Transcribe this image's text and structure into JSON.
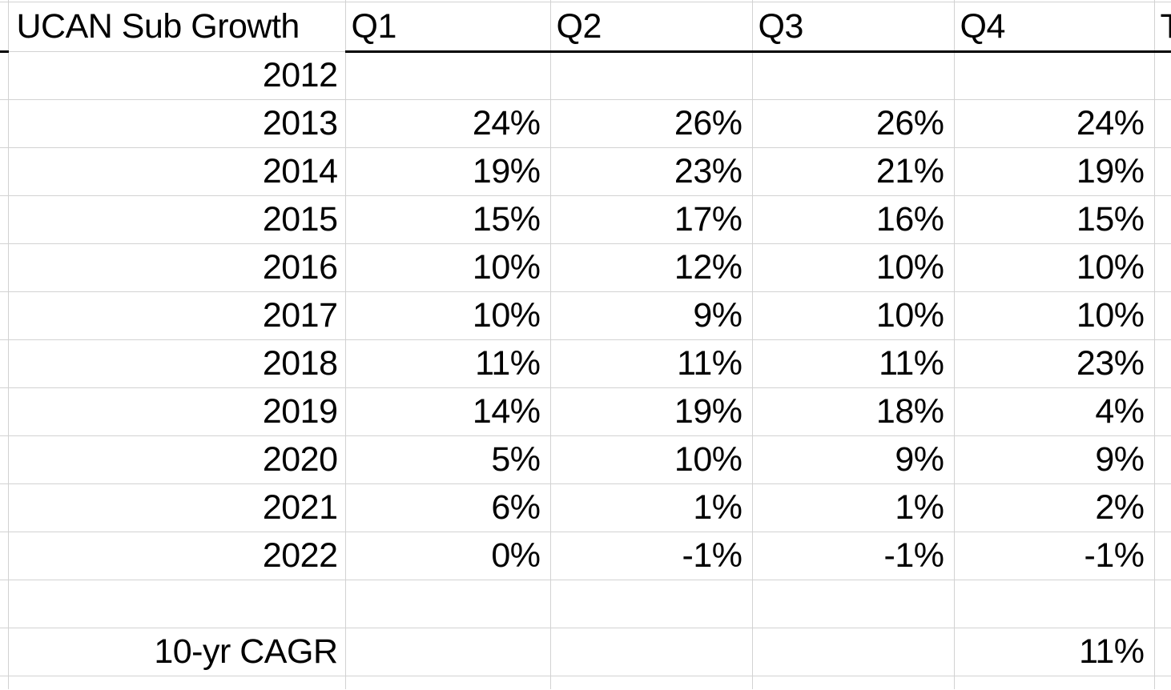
{
  "table": {
    "title": "UCAN Sub Growth",
    "column_headers": [
      "Q1",
      "Q2",
      "Q3",
      "Q4",
      "T"
    ],
    "rows": [
      {
        "label": "2012",
        "values": [
          "",
          "",
          "",
          ""
        ]
      },
      {
        "label": "2013",
        "values": [
          "24%",
          "26%",
          "26%",
          "24%"
        ]
      },
      {
        "label": "2014",
        "values": [
          "19%",
          "23%",
          "21%",
          "19%"
        ]
      },
      {
        "label": "2015",
        "values": [
          "15%",
          "17%",
          "16%",
          "15%"
        ]
      },
      {
        "label": "2016",
        "values": [
          "10%",
          "12%",
          "10%",
          "10%"
        ]
      },
      {
        "label": "2017",
        "values": [
          "10%",
          "9%",
          "10%",
          "10%"
        ]
      },
      {
        "label": "2018",
        "values": [
          "11%",
          "11%",
          "11%",
          "23%"
        ]
      },
      {
        "label": "2019",
        "values": [
          "14%",
          "19%",
          "18%",
          "4%"
        ]
      },
      {
        "label": "2020",
        "values": [
          "5%",
          "10%",
          "9%",
          "9%"
        ]
      },
      {
        "label": "2021",
        "values": [
          "6%",
          "1%",
          "1%",
          "2%"
        ]
      },
      {
        "label": "2022",
        "values": [
          "0%",
          "-1%",
          "-1%",
          "-1%"
        ]
      },
      {
        "label": "",
        "values": [
          "",
          "",
          "",
          ""
        ]
      },
      {
        "label": "10-yr CAGR",
        "values": [
          "",
          "",
          "",
          "11%"
        ]
      }
    ]
  },
  "chart_data": {
    "type": "table",
    "title": "UCAN Sub Growth",
    "categories": [
      "2012",
      "2013",
      "2014",
      "2015",
      "2016",
      "2017",
      "2018",
      "2019",
      "2020",
      "2021",
      "2022"
    ],
    "series": [
      {
        "name": "Q1",
        "values": [
          null,
          24,
          19,
          15,
          10,
          10,
          11,
          14,
          5,
          6,
          0
        ]
      },
      {
        "name": "Q2",
        "values": [
          null,
          26,
          23,
          17,
          12,
          9,
          11,
          19,
          10,
          1,
          -1
        ]
      },
      {
        "name": "Q3",
        "values": [
          null,
          26,
          21,
          16,
          10,
          10,
          11,
          18,
          9,
          1,
          -1
        ]
      },
      {
        "name": "Q4",
        "values": [
          null,
          24,
          19,
          15,
          10,
          10,
          23,
          4,
          9,
          2,
          -1
        ]
      }
    ],
    "summary_row": {
      "label": "10-yr CAGR",
      "q4_value": 11
    },
    "unit": "%"
  },
  "colors": {
    "gridline": "#d2d2d2",
    "header_underline": "#000000",
    "text": "#000000",
    "background": "#ffffff"
  }
}
